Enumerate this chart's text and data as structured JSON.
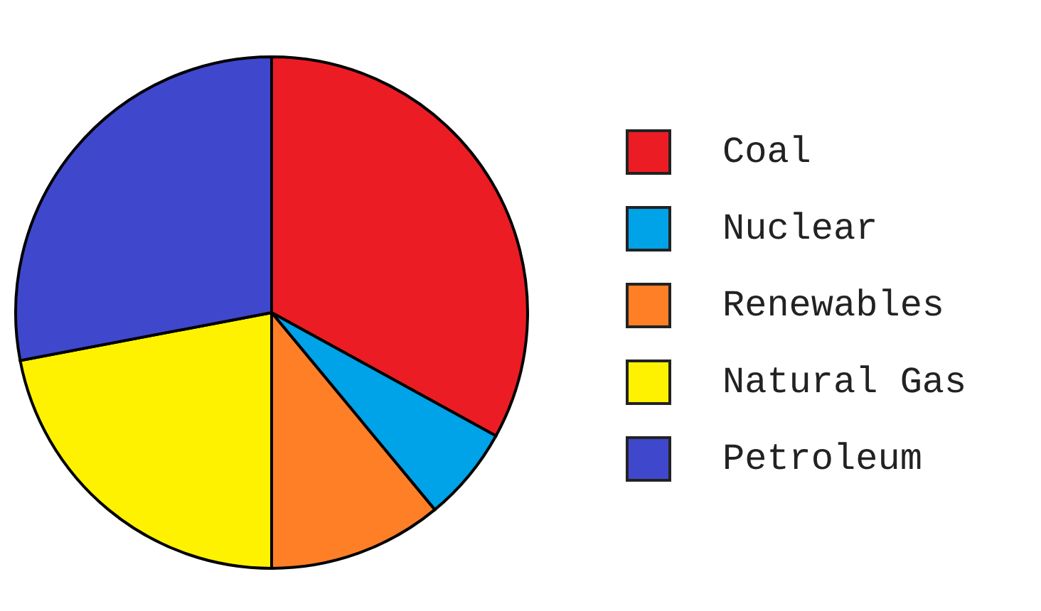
{
  "chart_data": {
    "type": "pie",
    "categories": [
      "Coal",
      "Nuclear",
      "Renewables",
      "Natural Gas",
      "Petroleum"
    ],
    "values": [
      33,
      6,
      11,
      22,
      28
    ],
    "colors": [
      "#ec1c24",
      "#00a2e8",
      "#ff7f27",
      "#fff200",
      "#3f48cc"
    ],
    "legend": "right"
  }
}
